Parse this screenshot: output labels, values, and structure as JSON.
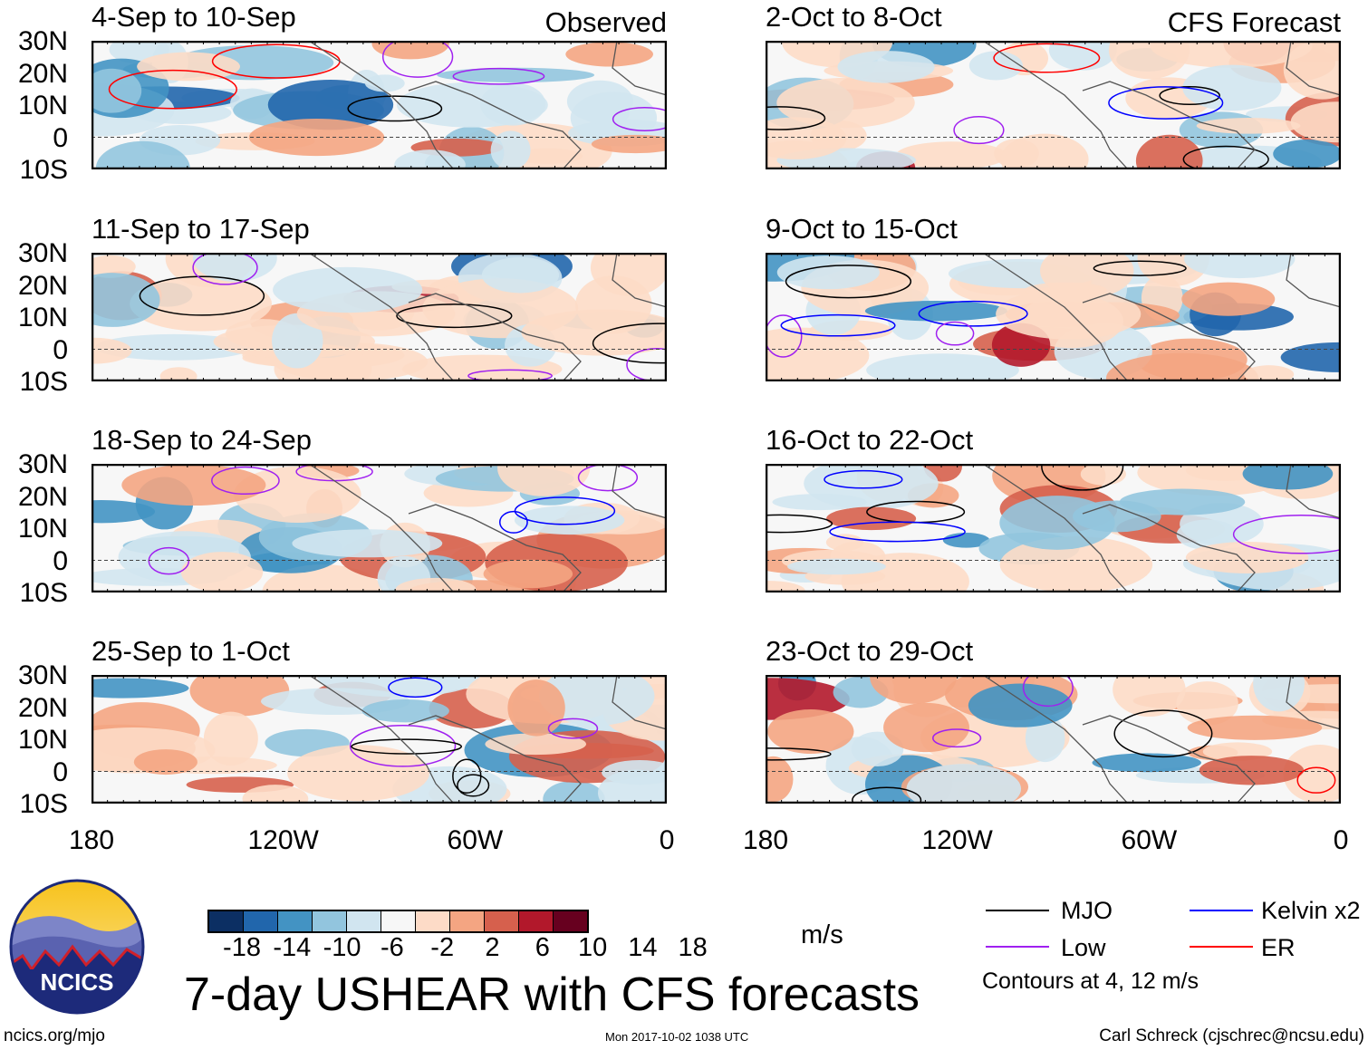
{
  "panels_left": [
    {
      "title": "4-Sep to 10-Sep",
      "tag": "Observed"
    },
    {
      "title": "11-Sep to 17-Sep"
    },
    {
      "title": "18-Sep to 24-Sep"
    },
    {
      "title": "25-Sep to 1-Oct"
    }
  ],
  "panels_right": [
    {
      "title": "2-Oct to 8-Oct",
      "tag": "CFS Forecast"
    },
    {
      "title": "9-Oct to 15-Oct"
    },
    {
      "title": "16-Oct to 22-Oct"
    },
    {
      "title": "23-Oct to 29-Oct"
    }
  ],
  "lat_labels": [
    "30N",
    "20N",
    "10N",
    "0",
    "10S"
  ],
  "lon_labels": [
    "180",
    "120W",
    "60W",
    "0"
  ],
  "colorbar": {
    "unit": "m/s",
    "ticks": [
      "-18",
      "-14",
      "-10",
      "-6",
      "-2",
      "2",
      "6",
      "10",
      "14",
      "18"
    ],
    "colors": [
      "#0c2f63",
      "#2166ac",
      "#4393c3",
      "#92c5de",
      "#d1e5f0",
      "#f7f7f7",
      "#fddbc7",
      "#f4a582",
      "#d6604d",
      "#b2182b",
      "#67001f"
    ]
  },
  "legend": {
    "items": [
      {
        "label": "MJO",
        "color": "#000000"
      },
      {
        "label": "Kelvin x2",
        "color": "#0000ff"
      },
      {
        "label": "Low",
        "color": "#a020f0"
      },
      {
        "label": "ER",
        "color": "#ff0000"
      }
    ],
    "note": "Contours at 4, 12 m/s"
  },
  "title": "7-day USHEAR with CFS forecasts",
  "logo_text": "NCICS",
  "footer": {
    "url": "ncics.org/mjo",
    "timestamp": "Mon 2017-10-02 1038 UTC",
    "credit": "Carl Schreck (cjschrec@ncsu.edu)"
  }
}
